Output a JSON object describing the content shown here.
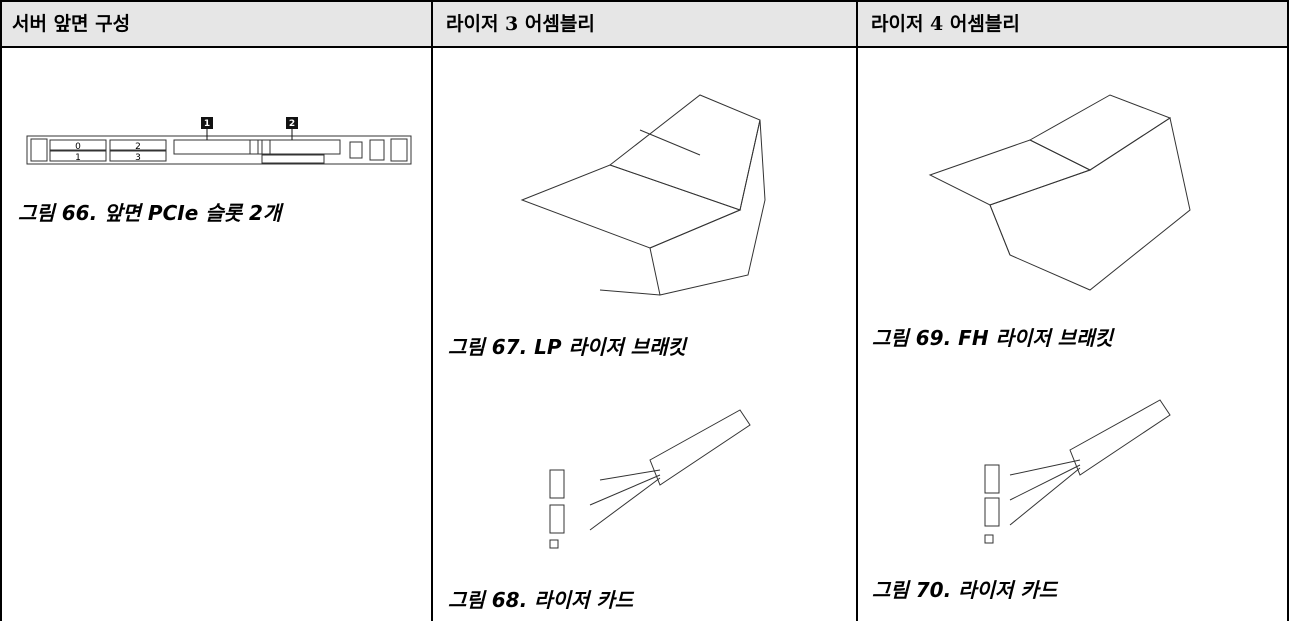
{
  "header": [
    "서버 앞면 구성",
    "라이저 3 어셈블리",
    "라이저 4 어셈블리"
  ],
  "server": {
    "bays": [
      "0",
      "2",
      "1",
      "3"
    ],
    "callouts": [
      "1",
      "2"
    ],
    "caption": "그림 66. 앞면 PCIe 슬롯 2개"
  },
  "riser3": {
    "bracket_caption": "그림 67. LP 라이저 브래킷",
    "card_caption": "그림 68. 라이저 카드"
  },
  "riser4": {
    "bracket_caption": "그림 69. FH 라이저 브래킷",
    "card_caption": "그림 70. 라이저 카드"
  }
}
